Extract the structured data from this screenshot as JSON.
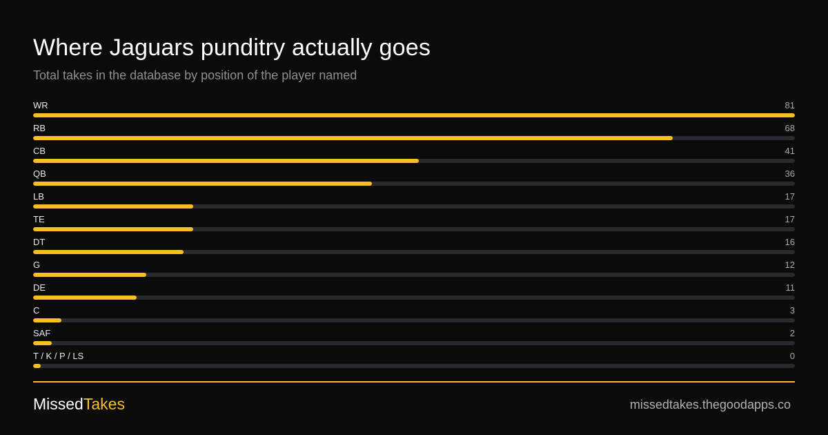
{
  "colors": {
    "background": "#0b0b0b",
    "accent": "#fbbf24",
    "track": "#2a2a2e",
    "subtitle": "#8e8e94"
  },
  "chart_data": {
    "type": "bar",
    "orientation": "horizontal",
    "title": "Where Jaguars punditry actually goes",
    "subtitle": "Total takes in the database by position of the player named",
    "categories": [
      "WR",
      "RB",
      "CB",
      "QB",
      "LB",
      "TE",
      "DT",
      "G",
      "DE",
      "C",
      "SAF",
      "T / K / P / LS"
    ],
    "values": [
      81,
      68,
      41,
      36,
      17,
      17,
      16,
      12,
      11,
      3,
      2,
      0
    ],
    "xlim": [
      0,
      81
    ],
    "grid": false,
    "legend": "none"
  },
  "footer": {
    "brand_part1": "Missed",
    "brand_part2": "Takes",
    "url": "missedtakes.thegoodapps.co"
  }
}
